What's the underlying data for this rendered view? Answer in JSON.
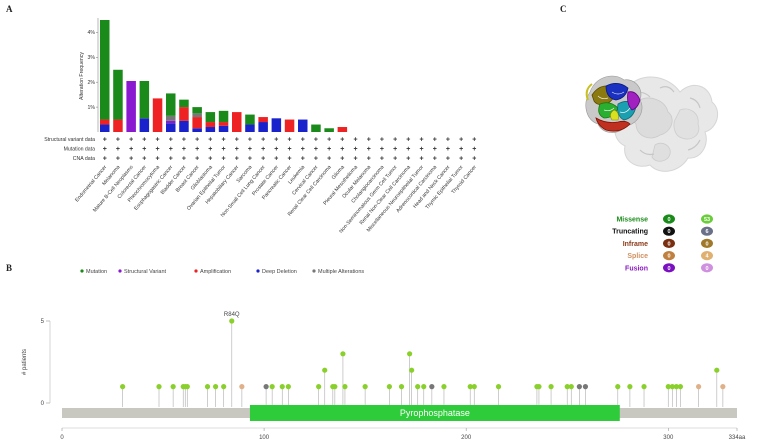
{
  "panel_letters": {
    "a": "A",
    "b": "B",
    "c": "C"
  },
  "colors": {
    "mutation": "#1a8a1a",
    "structural": "#8a1ad0",
    "amplification": "#ee2222",
    "deep_deletion": "#1a22cc",
    "multiple": "#777777",
    "lollipop_green": "#8ad02a",
    "lollipop_tan": "#e0b088",
    "domain": "#2ecc3a",
    "protein_bar": "#c8c8c0"
  },
  "chart_data": [
    {
      "type": "bar",
      "title": "",
      "ylabel": "Alteration Frequency",
      "ylim": [
        0,
        4.5
      ],
      "yticks": [
        "1%",
        "2%",
        "3%",
        "4%"
      ],
      "ytick_values": [
        1,
        2,
        3,
        4
      ],
      "row_labels": [
        "Structural variant data",
        "Mutation data",
        "CNA data"
      ],
      "row_marker": "+",
      "categories": [
        "Endometrial Cancer",
        "Melanoma",
        "Mature B-Cell Neoplasms",
        "Colorectal Cancer",
        "Pheochromocytoma",
        "Esophagogastric Cancer",
        "Bladder Cancer",
        "Breast Cancer",
        "Glioblastoma",
        "Ovarian Epithelial Tumor",
        "Hepatobiliary Cancer",
        "Sarcoma",
        "Non-Small Cell Lung Cancer",
        "Prostate Cancer",
        "Pancreatic Cancer",
        "Leukemia",
        "Cervical Cancer",
        "Renal Clear Cell Carcinoma",
        "Glioma",
        "Pleural Mesothelioma",
        "Ocular Melanoma",
        "Cholangiocarcinoma",
        "Non-Seminomatous Germ Cell Tumor",
        "Renal Non-Clear Cell Carcinoma",
        "Miscellaneous Neuroepithelial Tumor",
        "Adrenocortical Carcinoma",
        "Head and Neck Cancer",
        "Thymic Epithelial Tumor",
        "Thyroid Cancer"
      ],
      "series": [
        {
          "name": "Mutation",
          "values": [
            4.0,
            2.0,
            0,
            1.5,
            0,
            0.9,
            0.3,
            0.25,
            0.4,
            0.45,
            0,
            0.4,
            0,
            0,
            0,
            0,
            0.3,
            0.15,
            0,
            0,
            0,
            0,
            0,
            0,
            0,
            0,
            0,
            0,
            0
          ]
        },
        {
          "name": "Structural Variant",
          "values": [
            0,
            0,
            2.05,
            0,
            0,
            0.1,
            0,
            0,
            0,
            0,
            0,
            0,
            0,
            0,
            0,
            0,
            0,
            0,
            0,
            0,
            0,
            0,
            0,
            0,
            0,
            0,
            0,
            0,
            0
          ]
        },
        {
          "name": "Amplification",
          "values": [
            0.2,
            0.5,
            0,
            0,
            1.35,
            0,
            0.55,
            0.45,
            0.2,
            0.15,
            0.8,
            0,
            0.2,
            0,
            0.5,
            0,
            0,
            0,
            0.2,
            0,
            0,
            0,
            0,
            0,
            0,
            0,
            0,
            0,
            0
          ]
        },
        {
          "name": "Deep Deletion",
          "values": [
            0.3,
            0,
            0,
            0.55,
            0,
            0.35,
            0.45,
            0.15,
            0.2,
            0.25,
            0,
            0.3,
            0.4,
            0.55,
            0,
            0.5,
            0,
            0,
            0,
            0,
            0,
            0,
            0,
            0,
            0,
            0,
            0,
            0,
            0
          ]
        },
        {
          "name": "Multiple Alterations",
          "values": [
            0,
            0,
            0,
            0,
            0,
            0.2,
            0,
            0.15,
            0,
            0,
            0,
            0,
            0,
            0,
            0,
            0,
            0,
            0,
            0,
            0,
            0,
            0,
            0,
            0,
            0,
            0,
            0,
            0,
            0
          ]
        }
      ]
    },
    {
      "type": "scatter",
      "subtype": "lollipop",
      "ylabel": "# patients",
      "ylim": [
        0,
        5
      ],
      "yticks": [
        "0",
        "5"
      ],
      "ytick_values": [
        0,
        5
      ],
      "xlim": [
        0,
        334
      ],
      "xticks": [
        "0",
        "100",
        "200",
        "300",
        "334aa"
      ],
      "xtick_values": [
        0,
        100,
        200,
        300,
        334
      ],
      "legend": [
        "Mutation",
        "Structural Variant",
        "Amplification",
        "Deep Deletion",
        "Multiple Alterations"
      ],
      "annotation": {
        "label": "R84Q",
        "position": 84,
        "count": 5
      },
      "domain": {
        "name": "Pyrophosphatase",
        "start": 93,
        "end": 276
      },
      "protein_length": 334,
      "points": [
        {
          "pos": 30,
          "count": 1,
          "kind": "missense"
        },
        {
          "pos": 48,
          "count": 1,
          "kind": "missense"
        },
        {
          "pos": 55,
          "count": 1,
          "kind": "missense"
        },
        {
          "pos": 60,
          "count": 1,
          "kind": "missense"
        },
        {
          "pos": 61,
          "count": 1,
          "kind": "missense"
        },
        {
          "pos": 62,
          "count": 1,
          "kind": "missense"
        },
        {
          "pos": 72,
          "count": 1,
          "kind": "missense"
        },
        {
          "pos": 76,
          "count": 1,
          "kind": "missense"
        },
        {
          "pos": 80,
          "count": 1,
          "kind": "missense"
        },
        {
          "pos": 84,
          "count": 5,
          "kind": "missense"
        },
        {
          "pos": 89,
          "count": 1,
          "kind": "splice"
        },
        {
          "pos": 101,
          "count": 1,
          "kind": "truncating"
        },
        {
          "pos": 104,
          "count": 1,
          "kind": "missense"
        },
        {
          "pos": 109,
          "count": 1,
          "kind": "missense"
        },
        {
          "pos": 112,
          "count": 1,
          "kind": "missense"
        },
        {
          "pos": 127,
          "count": 1,
          "kind": "missense"
        },
        {
          "pos": 130,
          "count": 2,
          "kind": "missense"
        },
        {
          "pos": 134,
          "count": 1,
          "kind": "missense"
        },
        {
          "pos": 135,
          "count": 1,
          "kind": "missense"
        },
        {
          "pos": 139,
          "count": 3,
          "kind": "missense"
        },
        {
          "pos": 140,
          "count": 1,
          "kind": "missense"
        },
        {
          "pos": 150,
          "count": 1,
          "kind": "missense"
        },
        {
          "pos": 162,
          "count": 1,
          "kind": "missense"
        },
        {
          "pos": 168,
          "count": 1,
          "kind": "missense"
        },
        {
          "pos": 172,
          "count": 3,
          "kind": "missense"
        },
        {
          "pos": 173,
          "count": 2,
          "kind": "missense"
        },
        {
          "pos": 176,
          "count": 1,
          "kind": "missense"
        },
        {
          "pos": 179,
          "count": 1,
          "kind": "missense"
        },
        {
          "pos": 183,
          "count": 1,
          "kind": "truncating"
        },
        {
          "pos": 189,
          "count": 1,
          "kind": "missense"
        },
        {
          "pos": 202,
          "count": 1,
          "kind": "missense"
        },
        {
          "pos": 204,
          "count": 1,
          "kind": "missense"
        },
        {
          "pos": 216,
          "count": 1,
          "kind": "missense"
        },
        {
          "pos": 235,
          "count": 1,
          "kind": "missense"
        },
        {
          "pos": 236,
          "count": 1,
          "kind": "missense"
        },
        {
          "pos": 242,
          "count": 1,
          "kind": "missense"
        },
        {
          "pos": 250,
          "count": 1,
          "kind": "missense"
        },
        {
          "pos": 252,
          "count": 1,
          "kind": "missense"
        },
        {
          "pos": 256,
          "count": 1,
          "kind": "truncating"
        },
        {
          "pos": 259,
          "count": 1,
          "kind": "truncating"
        },
        {
          "pos": 275,
          "count": 1,
          "kind": "missense"
        },
        {
          "pos": 281,
          "count": 1,
          "kind": "missense"
        },
        {
          "pos": 288,
          "count": 1,
          "kind": "missense"
        },
        {
          "pos": 300,
          "count": 1,
          "kind": "missense"
        },
        {
          "pos": 302,
          "count": 1,
          "kind": "missense"
        },
        {
          "pos": 304,
          "count": 1,
          "kind": "missense"
        },
        {
          "pos": 306,
          "count": 1,
          "kind": "missense"
        },
        {
          "pos": 315,
          "count": 1,
          "kind": "splice"
        },
        {
          "pos": 324,
          "count": 2,
          "kind": "missense"
        },
        {
          "pos": 327,
          "count": 1,
          "kind": "splice"
        }
      ]
    }
  ],
  "structure_legend": [
    {
      "label": "Missense",
      "color": "#1a8a1a",
      "pill_a": "0",
      "pill_a_color": "#1a8a1a",
      "pill_b": "53",
      "pill_b_color": "#6acc3a"
    },
    {
      "label": "Truncating",
      "color": "#111111",
      "pill_a": "0",
      "pill_a_color": "#111111",
      "pill_b": "6",
      "pill_b_color": "#6a7088"
    },
    {
      "label": "Inframe",
      "color": "#8a3a18",
      "pill_a": "0",
      "pill_a_color": "#7a3010",
      "pill_b": "0",
      "pill_b_color": "#a07a2a"
    },
    {
      "label": "Splice",
      "color": "#d09060",
      "pill_a": "0",
      "pill_a_color": "#c08040",
      "pill_b": "4",
      "pill_b_color": "#e0b070"
    },
    {
      "label": "Fusion",
      "color": "#8a1ac0",
      "pill_a": "0",
      "pill_a_color": "#7a10c0",
      "pill_b": "0",
      "pill_b_color": "#d090e0"
    }
  ]
}
